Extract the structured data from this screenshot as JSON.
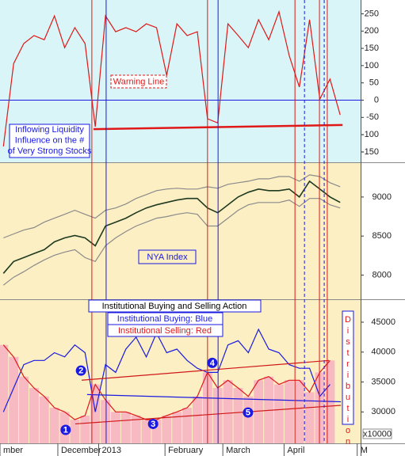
{
  "chart_data": [
    {
      "type": "line",
      "x": [
        0,
        3,
        6,
        9,
        12,
        15,
        18,
        21,
        24,
        27,
        30,
        33,
        36,
        39,
        42,
        45,
        48,
        51,
        54,
        57,
        60,
        63,
        66,
        69,
        72,
        75,
        78,
        81,
        84,
        87,
        90,
        93,
        96,
        99
      ],
      "xlim": [
        -1,
        105
      ],
      "ylim": [
        -180,
        290
      ],
      "yticks": [
        250,
        200,
        150,
        100,
        50,
        0,
        -50,
        -100,
        -150
      ],
      "hline": {
        "value": 0,
        "color": "#1a1ae0"
      },
      "series": [
        {
          "color": "#e01818",
          "values": [
            -134,
            106,
            164,
            187,
            175,
            244,
            152,
            210,
            164,
            -77,
            244,
            198,
            210,
            198,
            221,
            210,
            72,
            221,
            187,
            198,
            -54,
            -66,
            221,
            187,
            152,
            233,
            175,
            256,
            129,
            38,
            233,
            3,
            61,
            -43
          ]
        }
      ],
      "warning_line": {
        "label": "Warning Line",
        "color": "#e01818",
        "x": [
          26.5,
          99.7
        ],
        "values": [
          -84,
          -72
        ]
      },
      "text_box": [
        "Inflowing Liquidity",
        "Influence on the #",
        "of Very Strong Stocks"
      ],
      "vertical_lines": [
        {
          "x": 26,
          "color": "#e01818",
          "dashed": false
        },
        {
          "x": 30.2,
          "color": "#1a1ae0",
          "dashed": false
        },
        {
          "x": 60,
          "color": "#e01818",
          "dashed": false
        },
        {
          "x": 63.1,
          "color": "#1a1ae0",
          "dashed": false
        },
        {
          "x": 85.7,
          "color": "#e01818",
          "dashed": false
        },
        {
          "x": 88.5,
          "color": "#1a1ae0",
          "dashed": true
        },
        {
          "x": 92.9,
          "color": "#e01818",
          "dashed": false
        },
        {
          "x": 94.3,
          "color": "#1a1ae0",
          "dashed": true
        },
        {
          "x": 95.2,
          "color": "#e01818",
          "dashed": false
        }
      ]
    },
    {
      "type": "line",
      "x": [
        0,
        3,
        6,
        9,
        12,
        15,
        18,
        21,
        24,
        27,
        30,
        33,
        36,
        39,
        42,
        45,
        48,
        51,
        54,
        57,
        60,
        63,
        66,
        69,
        72,
        75,
        78,
        81,
        84,
        87,
        90,
        93,
        96,
        99
      ],
      "xlim": [
        -1,
        105
      ],
      "ylim": [
        7690,
        9435
      ],
      "yticks": [
        9000,
        8500,
        8000
      ],
      "series": [
        {
          "name": "NYA Index",
          "color": "#1f3a1f",
          "values": [
            8022,
            8174,
            8224,
            8275,
            8325,
            8426,
            8476,
            8507,
            8476,
            8375,
            8628,
            8678,
            8729,
            8799,
            8860,
            8900,
            8931,
            8961,
            8981,
            8981,
            8860,
            8799,
            8900,
            9001,
            9062,
            9102,
            9082,
            9082,
            9102,
            9001,
            9203,
            9102,
            9001,
            8931
          ]
        },
        {
          "color": "#8a8a8a",
          "values": [
            8476,
            8527,
            8577,
            8608,
            8678,
            8729,
            8779,
            8830,
            8779,
            8729,
            8830,
            8860,
            8910,
            8981,
            9031,
            9082,
            9102,
            9112,
            9102,
            9102,
            9132,
            9112,
            9163,
            9183,
            9203,
            9233,
            9233,
            9263,
            9263,
            9203,
            9284,
            9263,
            9183,
            9132
          ]
        },
        {
          "color": "#8a8a8a",
          "values": [
            7871,
            7972,
            8043,
            8123,
            8194,
            8254,
            8295,
            8325,
            8224,
            8174,
            8376,
            8476,
            8557,
            8628,
            8678,
            8729,
            8749,
            8779,
            8799,
            8779,
            8628,
            8628,
            8729,
            8830,
            8900,
            8930,
            8930,
            8930,
            8961,
            8880,
            8981,
            8981,
            8900,
            8860
          ]
        }
      ]
    },
    {
      "type": "line",
      "title": "Institutional Buying and Selling Action",
      "x": [
        0,
        3,
        6,
        9,
        12,
        15,
        18,
        21,
        24,
        27,
        30,
        33,
        36,
        39,
        42,
        45,
        48,
        51,
        54,
        57,
        60,
        63,
        66,
        69,
        72,
        75,
        78,
        81,
        84,
        87,
        90,
        93,
        96,
        99
      ],
      "xlim": [
        -1,
        105
      ],
      "ylim": [
        24750,
        48700
      ],
      "yticks": [
        45000,
        40000,
        35000,
        30000
      ],
      "y_unit": "x10000",
      "xticks": [
        {
          "value": -1,
          "label": "mber"
        },
        {
          "value": 16,
          "label": "December"
        },
        {
          "value": 28,
          "label": "2013"
        },
        {
          "value": 47.5,
          "label": "February"
        },
        {
          "value": 64.5,
          "label": "March"
        },
        {
          "value": 82.5,
          "label": "April"
        },
        {
          "value": 104,
          "label": "M"
        }
      ],
      "series": [
        {
          "name": "Institutional Buying: Blue",
          "color": "#1a1ae0",
          "values": [
            30000,
            34000,
            37900,
            38600,
            38600,
            39900,
            39200,
            41200,
            39900,
            30000,
            37900,
            36600,
            40500,
            42500,
            39200,
            43200,
            39900,
            40500,
            38600,
            37300,
            36600,
            36600,
            41200,
            41900,
            39900,
            43800,
            40500,
            39900,
            37900,
            37300,
            37300,
            32600,
            34600,
            null
          ]
        },
        {
          "name": "Institutional Selling: Red",
          "color": "#e01818",
          "bar_color": "#f7b9c2",
          "values": [
            41200,
            39200,
            35900,
            34000,
            32600,
            30700,
            30000,
            28700,
            29400,
            34600,
            32000,
            30000,
            30000,
            29400,
            28700,
            28700,
            29400,
            30000,
            30700,
            32600,
            36600,
            34000,
            35300,
            34000,
            32600,
            35300,
            35900,
            34600,
            35300,
            35300,
            33300,
            36600,
            38600,
            null
          ]
        }
      ],
      "trend_lines": [
        {
          "color": "#d01818",
          "x": [
            23,
            95.7
          ],
          "values": [
            35300,
            38600
          ]
        },
        {
          "color": "#d01818",
          "x": [
            21.1,
            99.2
          ],
          "values": [
            28000,
            31100
          ]
        },
        {
          "color": "#1a1ae0",
          "x": [
            24.6,
            99.2
          ],
          "values": [
            32900,
            31700
          ]
        }
      ],
      "markers": [
        {
          "label": "1",
          "x": 18.3,
          "y": 27000
        },
        {
          "label": "2",
          "x": 22.8,
          "y": 36900
        },
        {
          "label": "3",
          "x": 44,
          "y": 28000
        },
        {
          "label": "4",
          "x": 61.4,
          "y": 38200
        },
        {
          "label": "5",
          "x": 71.9,
          "y": 29900
        }
      ],
      "side_label": "Distribution"
    }
  ]
}
